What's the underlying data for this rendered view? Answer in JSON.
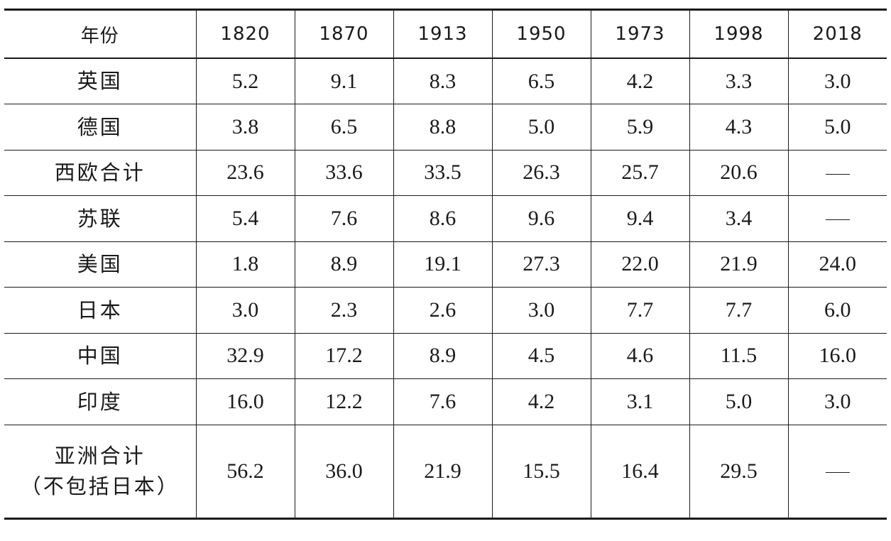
{
  "table": {
    "header": [
      "年份",
      "1820",
      "1870",
      "1913",
      "1950",
      "1973",
      "1998",
      "2018"
    ],
    "rows": [
      {
        "label": [
          "英国"
        ],
        "values": [
          "5.2",
          "9.1",
          "8.3",
          "6.5",
          "4.2",
          "3.3",
          "3.0"
        ]
      },
      {
        "label": [
          "德国"
        ],
        "values": [
          "3.8",
          "6.5",
          "8.8",
          "5.0",
          "5.9",
          "4.3",
          "5.0"
        ]
      },
      {
        "label": [
          "西欧合计"
        ],
        "values": [
          "23.6",
          "33.6",
          "33.5",
          "26.3",
          "25.7",
          "20.6",
          "—"
        ]
      },
      {
        "label": [
          "苏联"
        ],
        "values": [
          "5.4",
          "7.6",
          "8.6",
          "9.6",
          "9.4",
          "3.4",
          "—"
        ]
      },
      {
        "label": [
          "美国"
        ],
        "values": [
          "1.8",
          "8.9",
          "19.1",
          "27.3",
          "22.0",
          "21.9",
          "24.0"
        ]
      },
      {
        "label": [
          "日本"
        ],
        "values": [
          "3.0",
          "2.3",
          "2.6",
          "3.0",
          "7.7",
          "7.7",
          "6.0"
        ]
      },
      {
        "label": [
          "中国"
        ],
        "values": [
          "32.9",
          "17.2",
          "8.9",
          "4.5",
          "4.6",
          "11.5",
          "16.0"
        ]
      },
      {
        "label": [
          "印度"
        ],
        "values": [
          "16.0",
          "12.2",
          "7.6",
          "4.2",
          "3.1",
          "5.0",
          "3.0"
        ]
      },
      {
        "label": [
          "亚洲合计",
          "（不包括日本）"
        ],
        "values": [
          "56.2",
          "36.0",
          "21.9",
          "15.5",
          "16.4",
          "29.5",
          "—"
        ]
      }
    ]
  }
}
